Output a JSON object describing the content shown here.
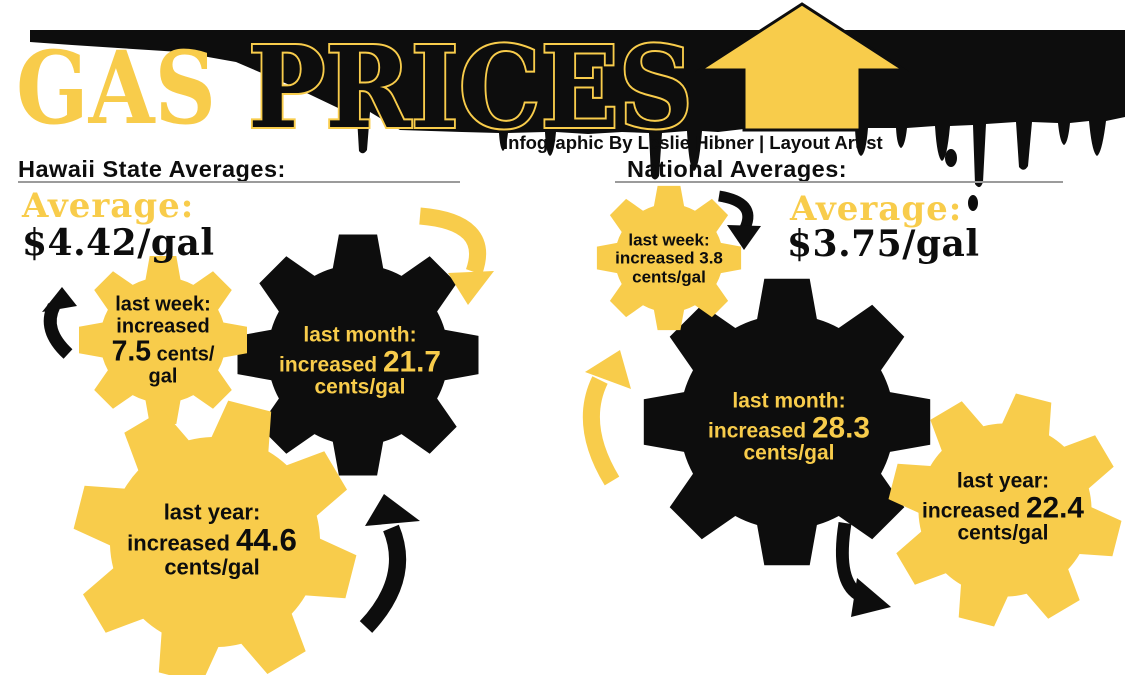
{
  "header": {
    "title_gas": "GAS",
    "title_prices": "PRICES",
    "credit": "Infographic By Leslie Hibner | Layout Artist"
  },
  "colors": {
    "yellow": "#F8CC4B",
    "ink": "#0d0d0d",
    "divider": "#9b9b9b"
  },
  "hawaii": {
    "heading": "Hawaii State  Averages:",
    "average_label": "Average:",
    "average_value": "$4.42/gal",
    "last_week": {
      "label": "last week:",
      "word": "increased",
      "value": "7.5",
      "unit": "cents/",
      "unit2": "gal"
    },
    "last_month": {
      "label": "last month:",
      "word": "increased",
      "value": "21.7",
      "unit": "cents/gal"
    },
    "last_year": {
      "label": "last year:",
      "word": "increased",
      "value": "44.6",
      "unit": "cents/gal"
    }
  },
  "national": {
    "heading": "National Averages:",
    "average_label": "Average:",
    "average_value": "$3.75/gal",
    "last_week": {
      "label": "last week:",
      "word": "increased",
      "value": "3.8",
      "unit": "cents/gal"
    },
    "last_month": {
      "label": "last month:",
      "word": "increased",
      "value": "28.3",
      "unit": "cents/gal"
    },
    "last_year": {
      "label": "last year:",
      "word": "increased",
      "value": "22.4",
      "unit": "cents/gal"
    }
  },
  "chart_data": {
    "type": "table",
    "title": "GAS PRICES",
    "subtitle": "Infographic By Leslie Hibner | Layout Artist",
    "groups": [
      {
        "name": "Hawaii State Averages",
        "average_usd_per_gal": 4.42,
        "increase_cents_per_gal": {
          "last_week": 7.5,
          "last_month": 21.7,
          "last_year": 44.6
        }
      },
      {
        "name": "National Averages",
        "average_usd_per_gal": 3.75,
        "increase_cents_per_gal": {
          "last_week": 3.8,
          "last_month": 28.3,
          "last_year": 22.4
        }
      }
    ]
  }
}
